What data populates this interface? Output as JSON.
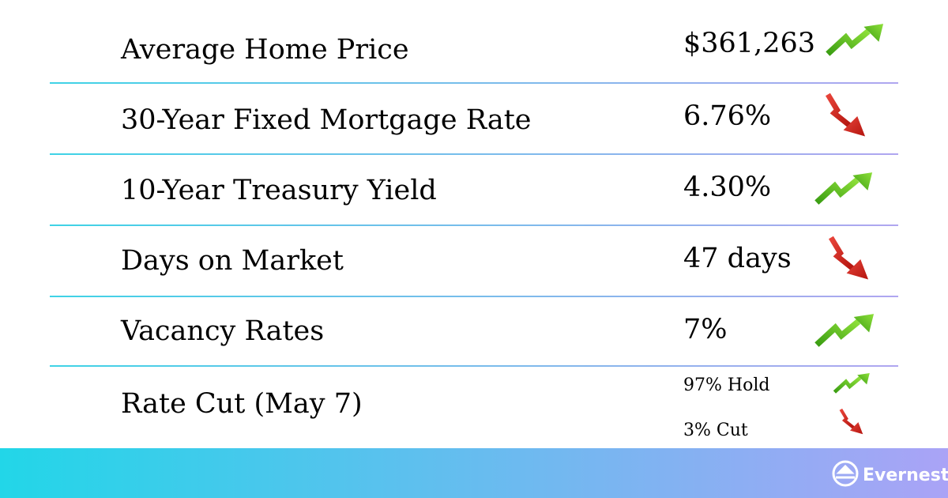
{
  "rows": [
    {
      "label": "Average Home Price",
      "value": "$361,263"
    },
    {
      "label": "30-Year Fixed Mortgage Rate",
      "value": "6.76%"
    },
    {
      "label": "10-Year Treasury Yield",
      "value": "4.30%"
    },
    {
      "label": "Days on Market",
      "value": "47 days"
    },
    {
      "label": "Vacancy Rates",
      "value": "7%"
    },
    {
      "label": "Rate Cut (May 7)",
      "values": [
        "97% Hold",
        "3% Cut"
      ]
    }
  ],
  "logo": "Evernest"
}
